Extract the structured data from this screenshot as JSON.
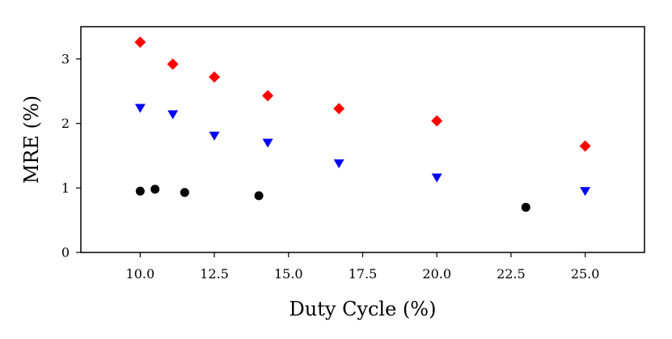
{
  "chart_data": {
    "type": "scatter",
    "xlabel": "Duty Cycle (%)",
    "ylabel": "MRE (%)",
    "xlim": [
      8.0,
      27.0
    ],
    "ylim": [
      0,
      3.5
    ],
    "x_ticks": [
      10.0,
      12.5,
      15.0,
      17.5,
      20.0,
      22.5,
      25.0
    ],
    "x_tick_labels": [
      "10.0",
      "12.5",
      "15.0",
      "17.5",
      "20.0",
      "22.5",
      "25.0"
    ],
    "y_ticks": [
      0,
      1,
      2,
      3
    ],
    "y_tick_labels": [
      "0",
      "1",
      "2",
      "3"
    ],
    "grid": false,
    "series": [
      {
        "marker": "diamond",
        "color": "#ff0000",
        "points": [
          [
            10.0,
            3.26
          ],
          [
            11.1,
            2.92
          ],
          [
            12.5,
            2.72
          ],
          [
            14.3,
            2.43
          ],
          [
            16.7,
            2.23
          ],
          [
            20.0,
            2.04
          ],
          [
            25.0,
            1.65
          ]
        ]
      },
      {
        "marker": "triangle-down",
        "color": "#0000ff",
        "points": [
          [
            10.0,
            2.24
          ],
          [
            11.1,
            2.14
          ],
          [
            12.5,
            1.81
          ],
          [
            14.3,
            1.7
          ],
          [
            16.7,
            1.38
          ],
          [
            20.0,
            1.16
          ],
          [
            25.0,
            0.95
          ]
        ]
      },
      {
        "marker": "circle",
        "color": "#000000",
        "points": [
          [
            10.0,
            0.95
          ],
          [
            10.5,
            0.98
          ],
          [
            11.5,
            0.93
          ],
          [
            14.0,
            0.88
          ],
          [
            23.0,
            0.7
          ]
        ]
      }
    ]
  }
}
